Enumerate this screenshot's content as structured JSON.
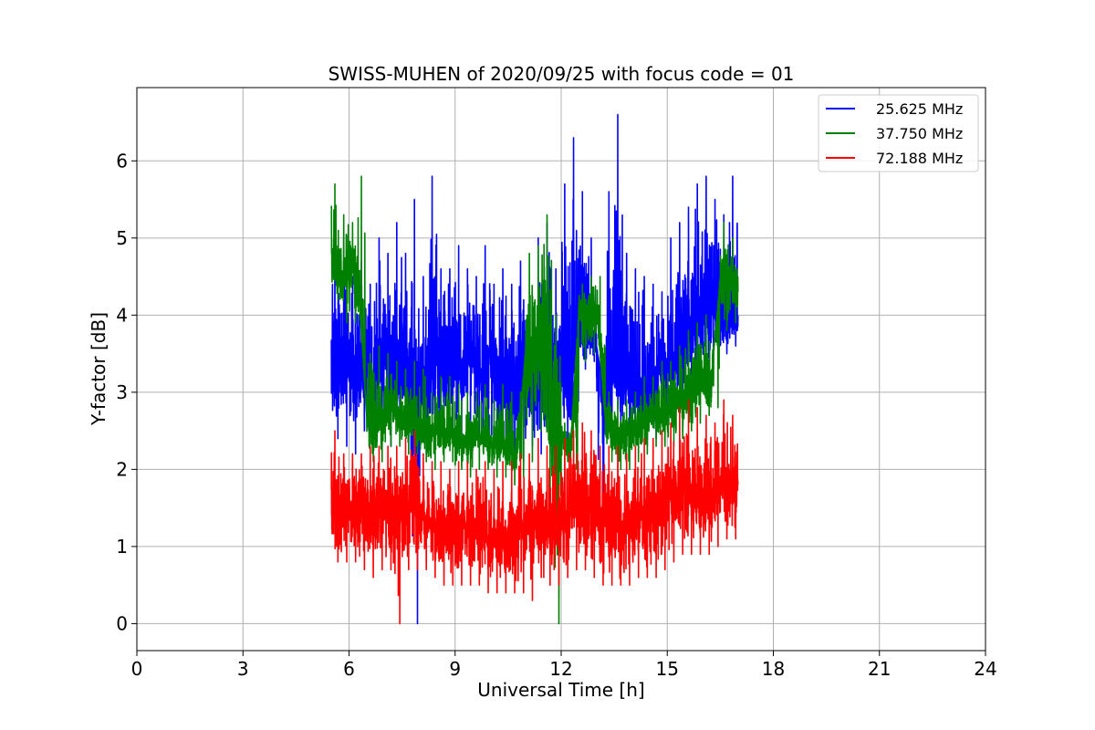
{
  "chart_data": {
    "type": "line",
    "title": "SWISS-MUHEN of 2020/09/25 with focus code = 01",
    "xlabel": "Universal Time [h]",
    "ylabel": "Y-factor [dB]",
    "xlim": [
      0,
      24
    ],
    "ylim": [
      -0.35,
      6.95
    ],
    "xticks": [
      0,
      3,
      6,
      9,
      12,
      15,
      18,
      21,
      24
    ],
    "yticks": [
      0,
      1,
      2,
      3,
      4,
      5,
      6
    ],
    "grid": true,
    "legend_position": "top-right",
    "series": [
      {
        "name": "25.625 MHz",
        "color": "#0000ff",
        "x": [
          5.5,
          5.75,
          6.0,
          6.25,
          6.5,
          6.75,
          7.0,
          7.25,
          7.5,
          7.75,
          8.0,
          8.25,
          8.5,
          8.75,
          9.0,
          9.25,
          9.5,
          9.75,
          10.0,
          10.25,
          10.5,
          10.75,
          11.0,
          11.25,
          11.5,
          11.75,
          12.0,
          12.25,
          12.5,
          12.75,
          13.0,
          13.25,
          13.5,
          13.75,
          14.0,
          14.25,
          14.5,
          14.75,
          15.0,
          15.25,
          15.5,
          15.75,
          16.0,
          16.25,
          16.5,
          16.75,
          17.0
        ],
        "values": [
          3.3,
          3.2,
          3.4,
          3.1,
          3.3,
          3.0,
          3.5,
          3.2,
          3.4,
          3.3,
          3.0,
          3.2,
          3.5,
          3.3,
          3.4,
          3.2,
          3.6,
          3.2,
          3.5,
          3.0,
          3.3,
          3.1,
          3.4,
          3.0,
          3.2,
          3.3,
          3.5,
          3.0,
          3.8,
          3.9,
          3.6,
          2.9,
          3.2,
          3.1,
          3.0,
          2.8,
          3.1,
          3.3,
          3.2,
          3.4,
          3.6,
          3.8,
          4.0,
          4.1,
          4.0,
          3.9,
          4.0
        ],
        "max_values": [
          4.8,
          5.0,
          4.5,
          4.7,
          4.4,
          5.0,
          4.8,
          5.2,
          4.8,
          5.5,
          4.5,
          5.8,
          4.6,
          4.6,
          4.9,
          4.6,
          4.5,
          4.9,
          4.4,
          4.6,
          4.4,
          4.7,
          3.8,
          5.0,
          5.2,
          4.6,
          5.7,
          6.3,
          5.6,
          5.0,
          3.0,
          5.6,
          6.6,
          4.8,
          4.6,
          4.5,
          4.4,
          4.3,
          5.0,
          5.2,
          5.4,
          5.7,
          5.8,
          5.5,
          5.3,
          5.8,
          5.6
        ],
        "min_values": [
          2.4,
          2.3,
          2.2,
          2.5,
          2.3,
          2.4,
          2.3,
          2.5,
          2.4,
          0.0,
          2.2,
          2.3,
          2.4,
          2.5,
          2.4,
          2.3,
          2.4,
          2.3,
          2.2,
          2.3,
          2.2,
          2.1,
          2.3,
          2.2,
          2.2,
          2.4,
          2.4,
          2.3,
          3.3,
          3.4,
          1.6,
          2.5,
          2.6,
          2.5,
          2.4,
          2.3,
          2.4,
          2.6,
          2.6,
          2.8,
          3.0,
          3.1,
          3.3,
          3.4,
          3.5,
          3.6,
          3.6
        ]
      },
      {
        "name": "37.750 MHz",
        "color": "#008000",
        "x": [
          5.5,
          5.75,
          6.0,
          6.25,
          6.5,
          6.75,
          7.0,
          7.25,
          7.5,
          7.75,
          8.0,
          8.25,
          8.5,
          8.75,
          9.0,
          9.25,
          9.5,
          9.75,
          10.0,
          10.25,
          10.5,
          10.75,
          11.0,
          11.25,
          11.5,
          11.75,
          12.0,
          12.25,
          12.5,
          12.75,
          13.0,
          13.25,
          13.5,
          13.75,
          14.0,
          14.25,
          14.5,
          14.75,
          15.0,
          15.25,
          15.5,
          15.75,
          16.0,
          16.25,
          16.5,
          16.75,
          17.0
        ],
        "values": [
          4.8,
          4.4,
          4.6,
          4.5,
          2.7,
          2.6,
          2.7,
          2.8,
          2.6,
          2.7,
          2.5,
          2.4,
          2.6,
          2.5,
          2.4,
          2.3,
          2.5,
          2.4,
          2.3,
          2.4,
          2.2,
          2.2,
          3.6,
          3.6,
          3.9,
          2.7,
          2.4,
          2.2,
          4.1,
          4.0,
          4.1,
          2.6,
          2.5,
          2.4,
          2.5,
          2.6,
          2.7,
          2.8,
          2.7,
          2.8,
          2.9,
          3.0,
          3.2,
          3.2,
          4.5,
          4.4,
          4.3
        ],
        "max_values": [
          5.7,
          5.3,
          5.2,
          5.8,
          3.5,
          3.6,
          3.5,
          3.4,
          3.3,
          3.4,
          3.3,
          3.0,
          3.2,
          3.2,
          3.1,
          3.0,
          3.0,
          3.1,
          2.9,
          3.1,
          3.0,
          3.0,
          4.8,
          4.9,
          5.3,
          4.0,
          2.6,
          2.5,
          4.4,
          4.5,
          4.5,
          3.0,
          2.9,
          2.9,
          3.0,
          3.2,
          3.2,
          3.4,
          3.4,
          3.6,
          3.8,
          3.9,
          4.0,
          3.8,
          5.2,
          5.0,
          5.0
        ],
        "min_values": [
          4.2,
          3.9,
          3.9,
          3.8,
          2.1,
          2.1,
          2.3,
          2.3,
          2.2,
          2.2,
          2.1,
          2.0,
          2.1,
          2.1,
          2.0,
          1.9,
          2.0,
          2.0,
          1.9,
          1.9,
          1.8,
          1.9,
          2.1,
          2.5,
          1.2,
          0.0,
          2.1,
          2.0,
          3.4,
          3.5,
          3.6,
          2.1,
          2.0,
          2.0,
          2.1,
          2.2,
          2.3,
          2.3,
          2.3,
          2.4,
          2.5,
          2.6,
          2.7,
          2.8,
          3.8,
          3.9,
          3.9
        ]
      },
      {
        "name": "72.188 MHz",
        "color": "#ff0000",
        "x": [
          5.5,
          5.75,
          6.0,
          6.25,
          6.5,
          6.75,
          7.0,
          7.25,
          7.5,
          7.75,
          8.0,
          8.25,
          8.5,
          8.75,
          9.0,
          9.25,
          9.5,
          9.75,
          10.0,
          10.25,
          10.5,
          10.75,
          11.0,
          11.25,
          11.5,
          11.75,
          12.0,
          12.25,
          12.5,
          12.75,
          13.0,
          13.25,
          13.5,
          13.75,
          14.0,
          14.25,
          14.5,
          14.75,
          15.0,
          15.25,
          15.5,
          15.75,
          16.0,
          16.25,
          16.5,
          16.75,
          17.0
        ],
        "values": [
          1.5,
          1.4,
          1.5,
          1.4,
          1.5,
          1.4,
          1.5,
          1.4,
          1.5,
          1.6,
          1.4,
          1.3,
          1.2,
          1.2,
          1.3,
          1.3,
          1.2,
          1.2,
          1.1,
          1.1,
          1.2,
          1.2,
          1.3,
          1.4,
          1.3,
          1.3,
          1.4,
          1.5,
          1.6,
          1.5,
          1.4,
          1.3,
          1.3,
          1.2,
          1.3,
          1.4,
          1.4,
          1.5,
          1.6,
          1.7,
          1.8,
          1.7,
          1.6,
          1.6,
          1.8,
          1.8,
          1.8
        ],
        "max_values": [
          2.5,
          2.2,
          2.2,
          2.2,
          2.3,
          2.3,
          2.3,
          2.3,
          2.4,
          2.5,
          2.2,
          2.1,
          2.1,
          2.0,
          2.1,
          2.1,
          2.0,
          2.1,
          2.0,
          2.1,
          2.1,
          2.2,
          2.2,
          2.4,
          2.3,
          2.3,
          2.4,
          2.5,
          2.6,
          2.5,
          2.3,
          2.3,
          2.3,
          2.2,
          2.3,
          2.4,
          2.4,
          2.5,
          2.6,
          2.8,
          2.9,
          2.8,
          2.7,
          2.6,
          2.9,
          2.7,
          2.5
        ],
        "min_values": [
          0.8,
          0.8,
          0.8,
          0.7,
          0.6,
          0.7,
          0.7,
          0.0,
          0.7,
          0.7,
          0.7,
          0.6,
          0.5,
          0.5,
          0.5,
          0.5,
          0.5,
          0.4,
          0.4,
          0.4,
          0.4,
          0.4,
          0.3,
          0.6,
          0.5,
          0.5,
          0.6,
          0.7,
          0.7,
          0.6,
          0.5,
          0.5,
          0.5,
          0.5,
          0.6,
          0.6,
          0.6,
          0.7,
          0.8,
          0.9,
          0.9,
          0.9,
          0.9,
          1.0,
          1.1,
          1.1,
          1.1
        ]
      }
    ]
  }
}
